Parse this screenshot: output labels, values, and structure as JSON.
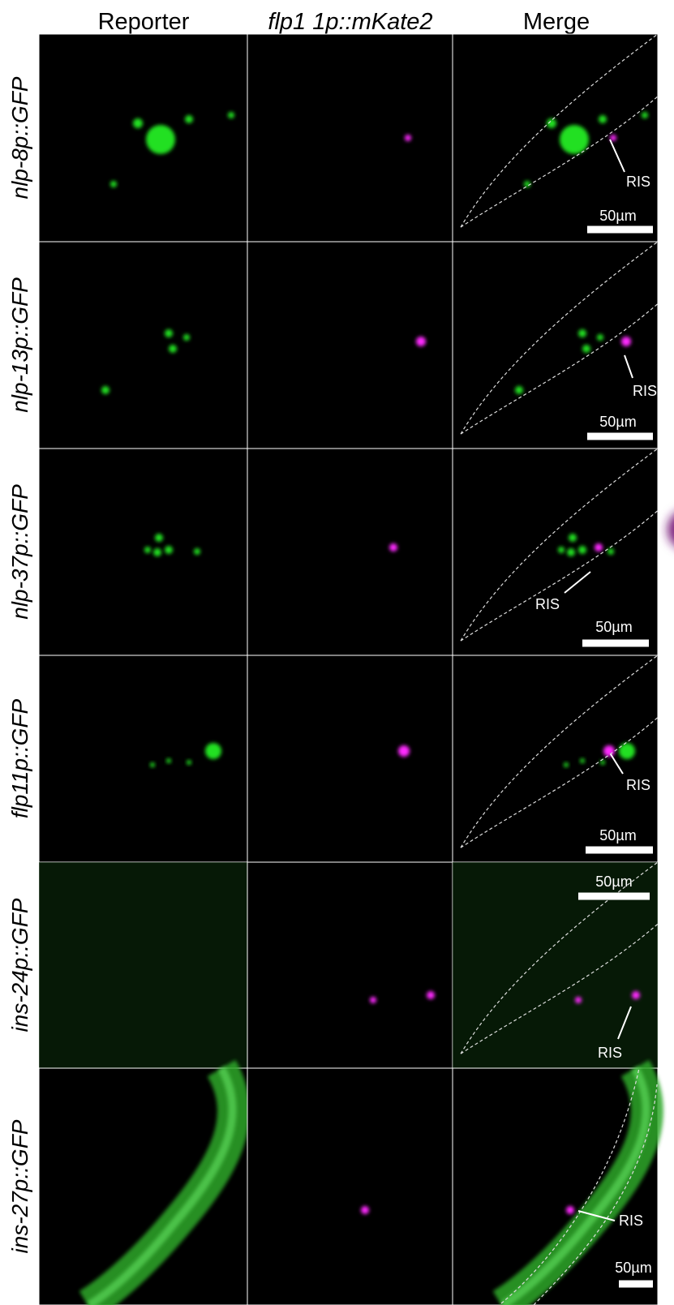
{
  "columns": [
    "Reporter",
    "flp1 1p::mKate2",
    "Merge"
  ],
  "rows": [
    {
      "label": "nlp-8p::GFP",
      "ris": "RIS",
      "scale": "50µm"
    },
    {
      "label": "nlp-13p::GFP",
      "ris": "RIS",
      "scale": "50µm"
    },
    {
      "label": "nlp-37p::GFP",
      "ris": "RIS",
      "scale": "50µm"
    },
    {
      "label": "flp11p::GFP",
      "ris": "RIS",
      "scale": "50µm"
    },
    {
      "label": "ins-24p::GFP",
      "ris": "RIS",
      "scale": "50µm"
    },
    {
      "label": "ins-27p::GFP",
      "ris": "RIS",
      "scale": "50µm"
    }
  ]
}
